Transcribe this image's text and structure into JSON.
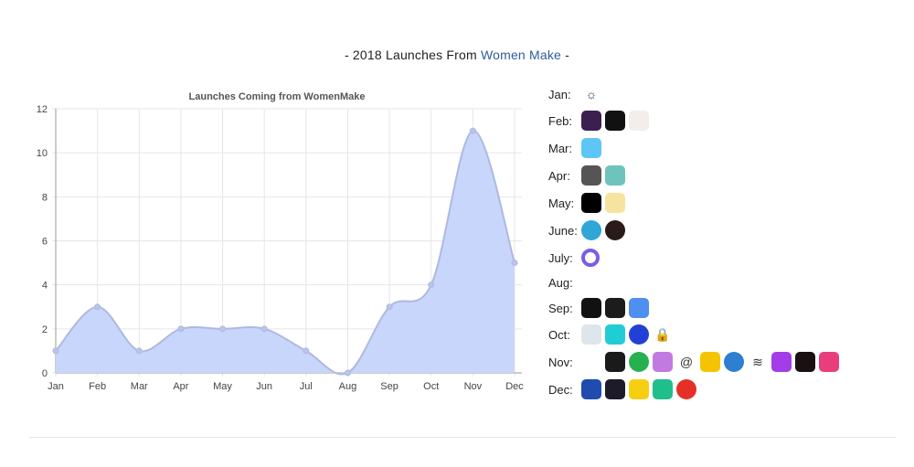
{
  "heading": {
    "prefix": "- 2018 Launches From ",
    "link": "Women Make",
    "suffix": " -"
  },
  "chart_data": {
    "type": "line",
    "title": "Launches Coming from WomenMake",
    "categories": [
      "Jan",
      "Feb",
      "Mar",
      "Apr",
      "May",
      "Jun",
      "Jul",
      "Aug",
      "Sep",
      "Oct",
      "Nov",
      "Dec"
    ],
    "values": [
      1,
      3,
      1,
      2,
      2,
      2,
      1,
      0,
      3,
      4,
      11,
      5
    ],
    "ylim": [
      0,
      12
    ],
    "yticks": [
      0,
      2,
      4,
      6,
      8,
      10,
      12
    ],
    "xlabel": "",
    "ylabel": "",
    "grid": true,
    "fill": true,
    "colors": {
      "fill": "#c9d6fb",
      "line": "#aeb9e0",
      "grid": "#e6e6e6",
      "axis": "#999999"
    }
  },
  "months": [
    {
      "label": "Jan:",
      "icons": [
        {
          "name": "sunrise-icon",
          "color": "#ffffff",
          "glyph": "☼"
        }
      ]
    },
    {
      "label": "Feb:",
      "icons": [
        {
          "name": "crown-app-icon",
          "color": "#3b1f4f"
        },
        {
          "name": "dark-screen-app-icon",
          "color": "#111111"
        },
        {
          "name": "figure-app-icon",
          "color": "#f3eeea"
        }
      ]
    },
    {
      "label": "Mar:",
      "icons": [
        {
          "name": "chevrons-app-icon",
          "color": "#5ec6f5"
        }
      ]
    },
    {
      "label": "Apr:",
      "icons": [
        {
          "name": "typewriter-app-icon",
          "color": "#555555"
        },
        {
          "name": "m-app-icon",
          "color": "#6cc4bd"
        }
      ]
    },
    {
      "label": "May:",
      "icons": [
        {
          "name": "clock-app-icon",
          "color": "#000000"
        },
        {
          "name": "cat-app-icon",
          "color": "#f6e3a0"
        }
      ]
    },
    {
      "label": "June:",
      "icons": [
        {
          "name": "lightning-app-icon",
          "color": "#2fa6d6",
          "round": true
        },
        {
          "name": "robot-app-icon",
          "color": "#2a1a1a",
          "round": true
        }
      ]
    },
    {
      "label": "July:",
      "icons": [
        {
          "name": "ring-app-icon",
          "color": "#7b5ce6",
          "ring": true
        }
      ]
    },
    {
      "label": "Aug:",
      "icons": []
    },
    {
      "label": "Sep:",
      "icons": [
        {
          "name": "inhabit-app-icon",
          "color": "#111111"
        },
        {
          "name": "earth-app-icon",
          "color": "#1c1c1c"
        },
        {
          "name": "ship-app-icon",
          "color": "#4f8ff0"
        }
      ]
    },
    {
      "label": "Oct:",
      "icons": [
        {
          "name": "vdp-app-icon",
          "color": "#dde6ea"
        },
        {
          "name": "cyan-app-icon",
          "color": "#20cdd6"
        },
        {
          "name": "pause-app-icon",
          "color": "#2340d6",
          "round": true
        },
        {
          "name": "phone-lock-icon",
          "color": "#ffffff",
          "glyph": "🔒"
        }
      ]
    },
    {
      "label": "Nov:",
      "icons": [
        {
          "name": "dots-app-icon",
          "color": "#ffffff"
        },
        {
          "name": "24hr-challenge-app-icon",
          "color": "#1a1a1a"
        },
        {
          "name": "search-leaf-app-icon",
          "color": "#27b04f",
          "round": true
        },
        {
          "name": "make-shine-app-icon",
          "color": "#c17ae0"
        },
        {
          "name": "at-sign-icon",
          "color": "#ffffff",
          "glyph": "@"
        },
        {
          "name": "eyes-app-icon",
          "color": "#f5c400"
        },
        {
          "name": "globe-app-icon",
          "color": "#2e7fd0",
          "round": true
        },
        {
          "name": "stones-app-icon",
          "color": "#ffffff",
          "glyph": "≋"
        },
        {
          "name": "purple-shape-app-icon",
          "color": "#a23de8"
        },
        {
          "name": "waveform-app-icon",
          "color": "#1a1012"
        },
        {
          "name": "pink-app-icon",
          "color": "#e83f7c"
        }
      ]
    },
    {
      "label": "Dec:",
      "icons": [
        {
          "name": "blue-face-app-icon",
          "color": "#1f4cae"
        },
        {
          "name": "scene-app-icon",
          "color": "#1d1a2a"
        },
        {
          "name": "yellow-app-icon",
          "color": "#f7cf10"
        },
        {
          "name": "wallet-app-icon",
          "color": "#1fbf8c"
        },
        {
          "name": "red-g-app-icon",
          "color": "#e53027",
          "round": true
        }
      ]
    }
  ]
}
